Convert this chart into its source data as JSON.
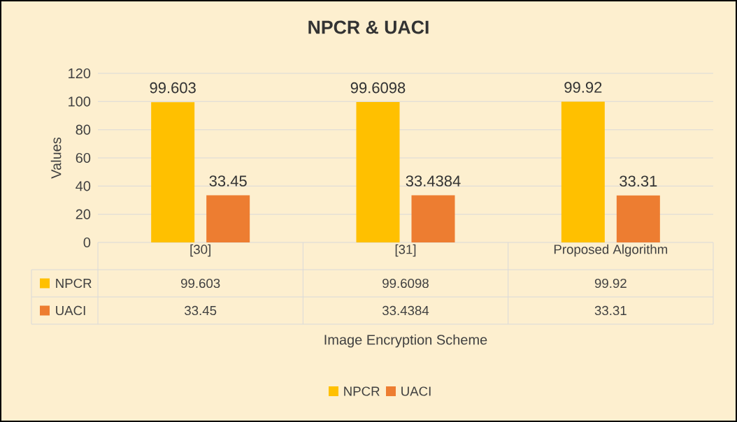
{
  "chart_data": {
    "type": "bar",
    "title": "NPCR & UACI",
    "ylabel": "Values",
    "categories": [
      "[30]",
      "[31]",
      "Proposed Algorithm"
    ],
    "series": [
      {
        "name": "NPCR",
        "color": "#ffc000",
        "values": [
          99.603,
          99.6098,
          99.92
        ]
      },
      {
        "name": "UACI",
        "color": "#ed7d31",
        "values": [
          33.45,
          33.4384,
          33.31
        ]
      }
    ],
    "annotations": [
      "99.603",
      "99.6098",
      "99.92",
      "33.45",
      "33.4384",
      "33.31",
      "Image Encryption Scheme"
    ],
    "ylim": [
      0,
      120
    ],
    "yticks": [
      0,
      20,
      40,
      60,
      80,
      100,
      120
    ],
    "grid": "y",
    "legend": "bottom",
    "data_labels": true
  }
}
